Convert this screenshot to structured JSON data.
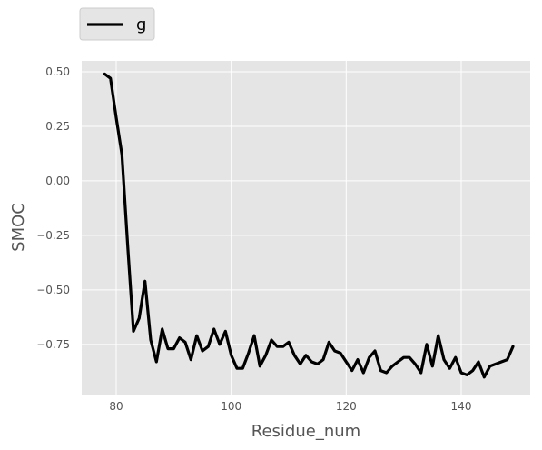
{
  "chart_data": {
    "type": "line",
    "xlabel": "Residue_num",
    "ylabel": "SMOC",
    "xlim": [
      74,
      152
    ],
    "ylim": [
      -0.98,
      0.55
    ],
    "xticks": [
      80,
      100,
      120,
      140
    ],
    "yticks": [
      0.5,
      0.25,
      0.0,
      -0.25,
      -0.5,
      -0.75
    ],
    "ytick_labels": [
      "0.50",
      "0.25",
      "0.00",
      "−0.25",
      "−0.50",
      "−0.75"
    ],
    "grid": true,
    "legend_position": "top-left, above plot",
    "colors": {
      "background": "#e5e5e5",
      "grid": "#ffffff",
      "line": "#000000"
    },
    "series": [
      {
        "name": "g",
        "color": "#000000",
        "x": [
          78,
          79,
          80,
          81,
          82,
          83,
          84,
          85,
          86,
          87,
          88,
          89,
          90,
          91,
          92,
          93,
          94,
          95,
          96,
          97,
          98,
          99,
          100,
          101,
          102,
          103,
          104,
          105,
          106,
          107,
          108,
          109,
          110,
          111,
          112,
          113,
          114,
          115,
          116,
          117,
          118,
          119,
          120,
          121,
          122,
          123,
          124,
          125,
          126,
          127,
          128,
          129,
          130,
          131,
          132,
          133,
          134,
          135,
          136,
          137,
          138,
          139,
          140,
          141,
          142,
          143,
          144,
          145,
          146,
          147,
          148,
          149
        ],
        "y": [
          0.49,
          0.47,
          0.29,
          0.12,
          -0.3,
          -0.69,
          -0.63,
          -0.46,
          -0.73,
          -0.83,
          -0.68,
          -0.77,
          -0.77,
          -0.72,
          -0.74,
          -0.82,
          -0.71,
          -0.78,
          -0.76,
          -0.68,
          -0.75,
          -0.69,
          -0.8,
          -0.86,
          -0.86,
          -0.79,
          -0.71,
          -0.85,
          -0.8,
          -0.73,
          -0.76,
          -0.76,
          -0.74,
          -0.8,
          -0.84,
          -0.8,
          -0.83,
          -0.84,
          -0.82,
          -0.74,
          -0.78,
          -0.79,
          -0.83,
          -0.87,
          -0.82,
          -0.88,
          -0.81,
          -0.78,
          -0.87,
          -0.88,
          -0.85,
          -0.83,
          -0.81,
          -0.81,
          -0.84,
          -0.88,
          -0.75,
          -0.85,
          -0.71,
          -0.82,
          -0.86,
          -0.81,
          -0.88,
          -0.89,
          -0.87,
          -0.83,
          -0.9,
          -0.85,
          -0.84,
          -0.83,
          -0.82,
          -0.76
        ]
      }
    ]
  }
}
